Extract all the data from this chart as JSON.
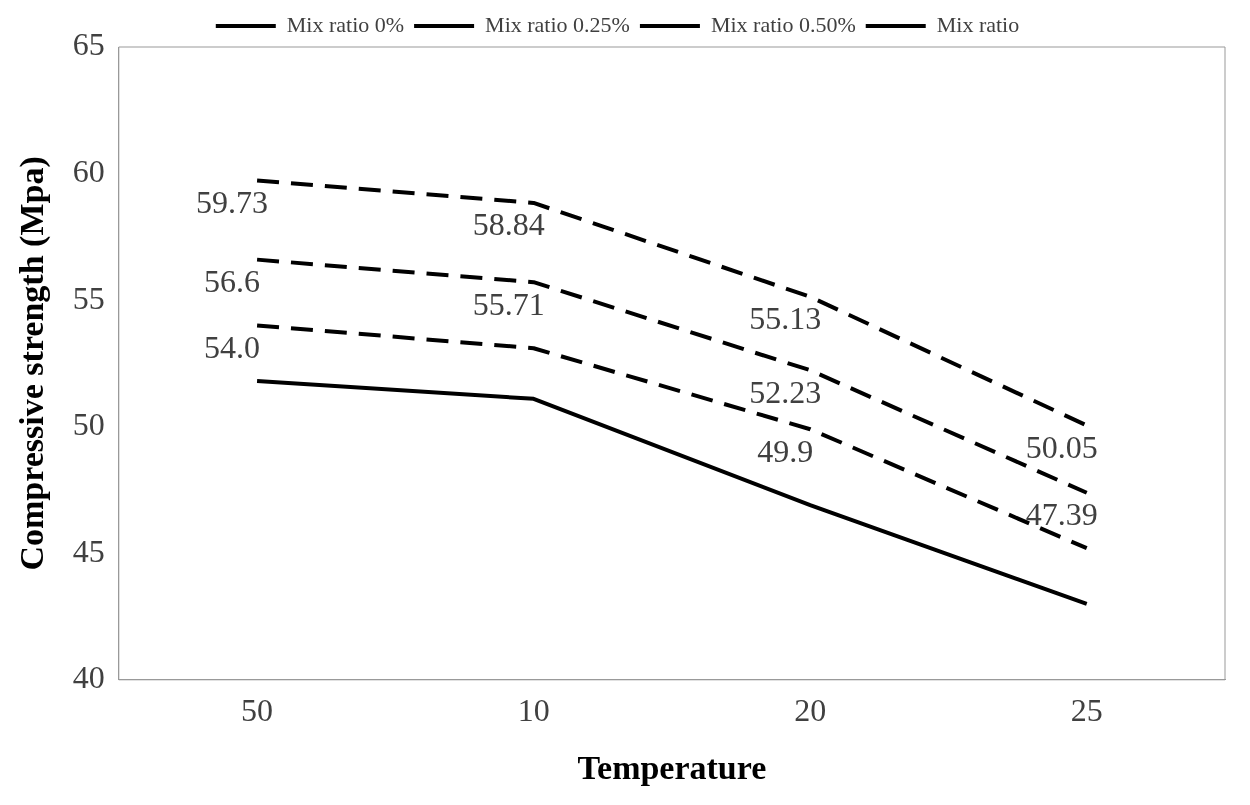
{
  "chart_data": {
    "type": "line",
    "xlabel": "Temperature",
    "ylabel": "Compressive strength (Mpa)",
    "categories": [
      "50",
      "10",
      "20",
      "25"
    ],
    "series": [
      {
        "name": "Mix ratio 0%",
        "color": "#000000",
        "line_style": "solid",
        "values": [
          51.8,
          51.1,
          46.9,
          43.0
        ]
      },
      {
        "name": "Mix ratio 0.25%",
        "color": "#000000",
        "line_style": "dashed",
        "values": [
          54.0,
          53.1,
          49.9,
          45.2
        ],
        "value_labels": [
          "54.0",
          null,
          "49.9",
          null
        ]
      },
      {
        "name": "Mix ratio 0.50%",
        "color": "#000000",
        "line_style": "dashed",
        "values": [
          56.6,
          55.71,
          52.23,
          47.39
        ],
        "value_labels": [
          "56.6",
          "55.71",
          "52.23",
          "47.39"
        ]
      },
      {
        "name": "Mix ratio",
        "color": "#000000",
        "line_style": "dashed",
        "values": [
          59.73,
          58.84,
          55.13,
          50.05
        ],
        "value_labels": [
          "59.73",
          "58.84",
          "55.13",
          "50.05"
        ]
      }
    ],
    "ylim": [
      40,
      65
    ],
    "yticks": [
      40,
      45,
      50,
      55,
      60,
      65
    ],
    "grid": false,
    "legend": "top",
    "marker": "none"
  }
}
